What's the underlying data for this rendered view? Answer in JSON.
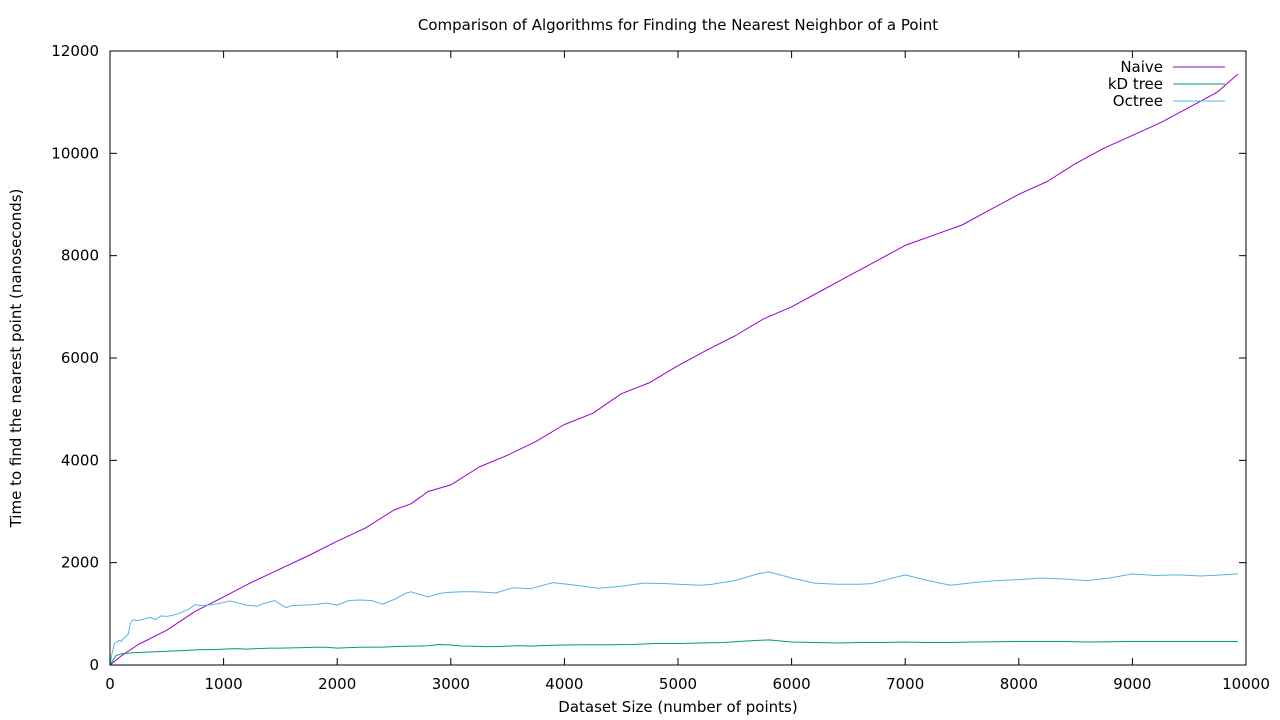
{
  "chart_data": {
    "type": "line",
    "title": "Comparison of Algorithms for Finding the Nearest Neighbor of a Point",
    "xlabel": "Dataset Size (number of points)",
    "ylabel": "Time to find the nearest point (nanoseconds)",
    "xlim": [
      0,
      10000
    ],
    "ylim": [
      0,
      12000
    ],
    "x_ticks": [
      0,
      1000,
      2000,
      3000,
      4000,
      5000,
      6000,
      7000,
      8000,
      9000,
      10000
    ],
    "y_ticks": [
      0,
      2000,
      4000,
      6000,
      8000,
      10000,
      12000
    ],
    "grid": false,
    "legend_position": "top-right",
    "series": [
      {
        "name": "Naive",
        "color": "#9400d3",
        "points": [
          [
            0,
            0
          ],
          [
            100,
            180
          ],
          [
            250,
            400
          ],
          [
            500,
            680
          ],
          [
            750,
            1050
          ],
          [
            1000,
            1330
          ],
          [
            1250,
            1620
          ],
          [
            1500,
            1880
          ],
          [
            1750,
            2140
          ],
          [
            2000,
            2420
          ],
          [
            2250,
            2680
          ],
          [
            2500,
            3030
          ],
          [
            2650,
            3150
          ],
          [
            2800,
            3390
          ],
          [
            3000,
            3520
          ],
          [
            3250,
            3870
          ],
          [
            3500,
            4100
          ],
          [
            3750,
            4370
          ],
          [
            4000,
            4700
          ],
          [
            4250,
            4920
          ],
          [
            4500,
            5300
          ],
          [
            4750,
            5520
          ],
          [
            5000,
            5850
          ],
          [
            5250,
            6150
          ],
          [
            5500,
            6430
          ],
          [
            5750,
            6760
          ],
          [
            6000,
            7000
          ],
          [
            6250,
            7300
          ],
          [
            6500,
            7600
          ],
          [
            6750,
            7900
          ],
          [
            7000,
            8200
          ],
          [
            7250,
            8400
          ],
          [
            7500,
            8600
          ],
          [
            7750,
            8900
          ],
          [
            8000,
            9200
          ],
          [
            8250,
            9450
          ],
          [
            8500,
            9800
          ],
          [
            8750,
            10100
          ],
          [
            9000,
            10350
          ],
          [
            9250,
            10600
          ],
          [
            9500,
            10900
          ],
          [
            9750,
            11200
          ],
          [
            9930,
            11550
          ]
        ]
      },
      {
        "name": "kD tree",
        "color": "#009e73",
        "points": [
          [
            0,
            0
          ],
          [
            50,
            180
          ],
          [
            100,
            220
          ],
          [
            200,
            240
          ],
          [
            300,
            250
          ],
          [
            400,
            260
          ],
          [
            500,
            270
          ],
          [
            600,
            280
          ],
          [
            700,
            290
          ],
          [
            800,
            300
          ],
          [
            900,
            300
          ],
          [
            1000,
            310
          ],
          [
            1100,
            320
          ],
          [
            1200,
            310
          ],
          [
            1300,
            320
          ],
          [
            1400,
            330
          ],
          [
            1500,
            330
          ],
          [
            1600,
            335
          ],
          [
            1700,
            340
          ],
          [
            1800,
            345
          ],
          [
            1900,
            345
          ],
          [
            2000,
            330
          ],
          [
            2100,
            340
          ],
          [
            2200,
            345
          ],
          [
            2300,
            350
          ],
          [
            2400,
            350
          ],
          [
            2500,
            360
          ],
          [
            2600,
            365
          ],
          [
            2700,
            370
          ],
          [
            2800,
            375
          ],
          [
            2900,
            400
          ],
          [
            3000,
            390
          ],
          [
            3100,
            370
          ],
          [
            3200,
            365
          ],
          [
            3300,
            360
          ],
          [
            3400,
            360
          ],
          [
            3500,
            370
          ],
          [
            3600,
            380
          ],
          [
            3700,
            370
          ],
          [
            3800,
            380
          ],
          [
            3900,
            385
          ],
          [
            4000,
            390
          ],
          [
            4200,
            395
          ],
          [
            4400,
            395
          ],
          [
            4600,
            400
          ],
          [
            4800,
            420
          ],
          [
            5000,
            420
          ],
          [
            5200,
            430
          ],
          [
            5400,
            440
          ],
          [
            5600,
            470
          ],
          [
            5800,
            490
          ],
          [
            6000,
            450
          ],
          [
            6200,
            440
          ],
          [
            6400,
            430
          ],
          [
            6600,
            440
          ],
          [
            6800,
            440
          ],
          [
            7000,
            450
          ],
          [
            7200,
            440
          ],
          [
            7400,
            440
          ],
          [
            7600,
            450
          ],
          [
            7800,
            455
          ],
          [
            8000,
            460
          ],
          [
            8200,
            460
          ],
          [
            8400,
            460
          ],
          [
            8600,
            450
          ],
          [
            8800,
            455
          ],
          [
            9000,
            460
          ],
          [
            9200,
            460
          ],
          [
            9400,
            460
          ],
          [
            9600,
            460
          ],
          [
            9800,
            460
          ],
          [
            9930,
            460
          ]
        ]
      },
      {
        "name": "Octree",
        "color": "#56b4e9",
        "points": [
          [
            0,
            0
          ],
          [
            20,
            250
          ],
          [
            40,
            420
          ],
          [
            60,
            450
          ],
          [
            80,
            480
          ],
          [
            100,
            460
          ],
          [
            120,
            520
          ],
          [
            140,
            560
          ],
          [
            160,
            600
          ],
          [
            180,
            820
          ],
          [
            200,
            880
          ],
          [
            250,
            870
          ],
          [
            300,
            900
          ],
          [
            350,
            930
          ],
          [
            400,
            890
          ],
          [
            450,
            960
          ],
          [
            500,
            950
          ],
          [
            550,
            970
          ],
          [
            600,
            1000
          ],
          [
            650,
            1050
          ],
          [
            700,
            1100
          ],
          [
            750,
            1180
          ],
          [
            800,
            1160
          ],
          [
            850,
            1170
          ],
          [
            900,
            1180
          ],
          [
            950,
            1200
          ],
          [
            1000,
            1220
          ],
          [
            1050,
            1250
          ],
          [
            1100,
            1230
          ],
          [
            1200,
            1170
          ],
          [
            1300,
            1150
          ],
          [
            1350,
            1200
          ],
          [
            1450,
            1260
          ],
          [
            1550,
            1120
          ],
          [
            1600,
            1160
          ],
          [
            1700,
            1170
          ],
          [
            1800,
            1180
          ],
          [
            1900,
            1210
          ],
          [
            2000,
            1170
          ],
          [
            2100,
            1260
          ],
          [
            2200,
            1270
          ],
          [
            2300,
            1260
          ],
          [
            2400,
            1190
          ],
          [
            2500,
            1280
          ],
          [
            2600,
            1400
          ],
          [
            2650,
            1430
          ],
          [
            2800,
            1330
          ],
          [
            2900,
            1400
          ],
          [
            3000,
            1420
          ],
          [
            3100,
            1430
          ],
          [
            3200,
            1430
          ],
          [
            3300,
            1420
          ],
          [
            3400,
            1410
          ],
          [
            3500,
            1480
          ],
          [
            3550,
            1510
          ],
          [
            3700,
            1490
          ],
          [
            3800,
            1550
          ],
          [
            3900,
            1610
          ],
          [
            4100,
            1560
          ],
          [
            4300,
            1500
          ],
          [
            4500,
            1540
          ],
          [
            4700,
            1600
          ],
          [
            4900,
            1590
          ],
          [
            5000,
            1580
          ],
          [
            5200,
            1560
          ],
          [
            5300,
            1580
          ],
          [
            5500,
            1650
          ],
          [
            5700,
            1780
          ],
          [
            5800,
            1820
          ],
          [
            6000,
            1700
          ],
          [
            6200,
            1600
          ],
          [
            6400,
            1580
          ],
          [
            6600,
            1580
          ],
          [
            6700,
            1590
          ],
          [
            7000,
            1760
          ],
          [
            7200,
            1650
          ],
          [
            7400,
            1560
          ],
          [
            7600,
            1610
          ],
          [
            7800,
            1650
          ],
          [
            8000,
            1670
          ],
          [
            8200,
            1700
          ],
          [
            8400,
            1680
          ],
          [
            8600,
            1650
          ],
          [
            8800,
            1700
          ],
          [
            9000,
            1780
          ],
          [
            9200,
            1750
          ],
          [
            9400,
            1760
          ],
          [
            9600,
            1740
          ],
          [
            9800,
            1760
          ],
          [
            9930,
            1780
          ]
        ]
      }
    ]
  }
}
